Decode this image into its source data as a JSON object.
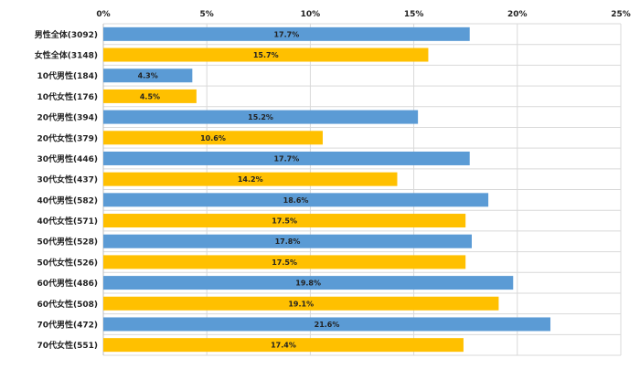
{
  "chart_data": {
    "type": "bar",
    "orientation": "horizontal",
    "title": "",
    "xlabel": "",
    "ylabel": "",
    "xlim": [
      0,
      25
    ],
    "x_ticks": [
      0,
      5,
      10,
      15,
      20,
      25
    ],
    "x_tick_labels": [
      "0%",
      "5%",
      "10%",
      "15%",
      "20%",
      "25%"
    ],
    "tick_axis_position": "top",
    "grid": true,
    "legend": "none",
    "colors": {
      "male": "#5b9bd5",
      "female": "#ffc000"
    },
    "categories": [
      "男性全体(3092)",
      "女性全体(3148)",
      "10代男性(184)",
      "10代女性(176)",
      "20代男性(394)",
      "20代女性(379)",
      "30代男性(446)",
      "30代女性(437)",
      "40代男性(582)",
      "40代女性(571)",
      "50代男性(528)",
      "50代女性(526)",
      "60代男性(486)",
      "60代女性(508)",
      "70代男性(472)",
      "70代女性(551)"
    ],
    "values": [
      17.7,
      15.7,
      4.3,
      4.5,
      15.2,
      10.6,
      17.7,
      14.2,
      18.6,
      17.5,
      17.8,
      17.5,
      19.8,
      19.1,
      21.6,
      17.4
    ],
    "value_labels": [
      "17.7%",
      "15.7%",
      "4.3%",
      "4.5%",
      "15.2%",
      "10.6%",
      "17.7%",
      "14.2%",
      "18.6%",
      "17.5%",
      "17.8%",
      "17.5%",
      "19.8%",
      "19.1%",
      "21.6%",
      "17.4%"
    ],
    "groups": [
      "male",
      "female",
      "male",
      "female",
      "male",
      "female",
      "male",
      "female",
      "male",
      "female",
      "male",
      "female",
      "male",
      "female",
      "male",
      "female"
    ]
  }
}
